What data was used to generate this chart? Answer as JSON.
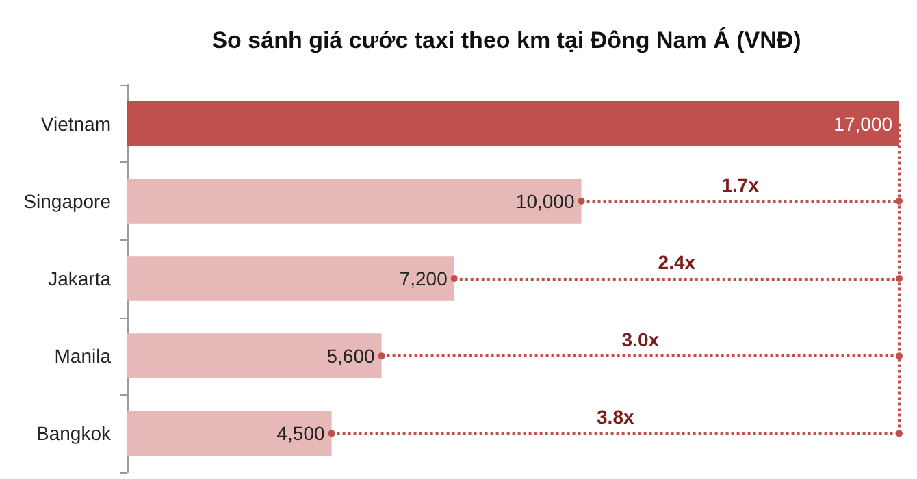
{
  "chart_data": {
    "type": "bar",
    "orientation": "horizontal",
    "title": "So sánh giá cước taxi theo km tại Đông Nam Á (VNĐ)",
    "categories": [
      "Vietnam",
      "Singapore",
      "Jakarta",
      "Manila",
      "Bangkok"
    ],
    "values": [
      17000,
      10000,
      7200,
      5600,
      4500
    ],
    "value_labels": [
      "17,000",
      "10,000",
      "7,200",
      "5,600",
      "4,500"
    ],
    "colors": [
      "#c0504d",
      "#e6b9b8",
      "#e6b9b8",
      "#e6b9b8",
      "#e6b9b8"
    ],
    "annotations": [
      "1.7x",
      "2.4x",
      "3.0x",
      "3.8x"
    ]
  }
}
